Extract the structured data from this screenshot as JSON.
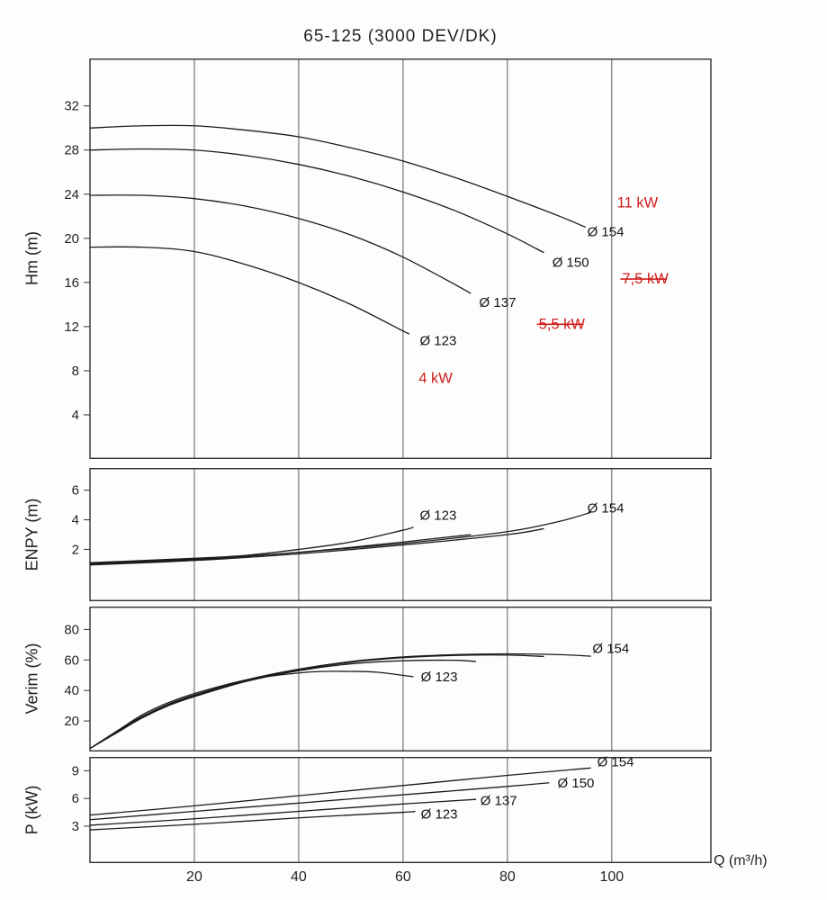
{
  "title": "65-125 (3000 DEV/DK)",
  "x_axis": {
    "label": "Q (m³/h)",
    "ticks": [
      20,
      40,
      60,
      80,
      100
    ],
    "range": [
      0,
      119
    ]
  },
  "colors": {
    "curve": "#1b1b1b",
    "grid": "#5b5b5b",
    "border": "#303030",
    "annotation_red": "#cf1d1d"
  },
  "chart_data": [
    {
      "id": "hm",
      "type": "line",
      "ylabel": "Hm (m)",
      "yticks": [
        4,
        8,
        12,
        16,
        20,
        24,
        28,
        32
      ],
      "ylim": [
        0,
        36.3
      ],
      "grid": "vertical-only",
      "series": [
        {
          "name": "Ø 154",
          "x": [
            0,
            10,
            20,
            30,
            40,
            50,
            60,
            70,
            80,
            90,
            95
          ],
          "y": [
            30,
            30.2,
            30.2,
            29.8,
            29.2,
            28.2,
            27,
            25.5,
            23.8,
            22,
            21
          ],
          "label": {
            "text": "Ø 154",
            "x": 95.3,
            "y": 20.2
          }
        },
        {
          "name": "Ø 150",
          "x": [
            0,
            10,
            20,
            30,
            40,
            50,
            60,
            70,
            80,
            87
          ],
          "y": [
            28,
            28.1,
            28,
            27.5,
            26.7,
            25.6,
            24.2,
            22.5,
            20.4,
            18.7
          ],
          "label": {
            "text": "Ø 150",
            "x": 88.6,
            "y": 17.4
          }
        },
        {
          "name": "Ø 137",
          "x": [
            0,
            10,
            20,
            30,
            40,
            50,
            60,
            70,
            73
          ],
          "y": [
            23.9,
            23.9,
            23.6,
            22.9,
            21.8,
            20.3,
            18.3,
            15.8,
            15
          ],
          "label": {
            "text": "Ø 137",
            "x": 74.6,
            "y": 13.8
          }
        },
        {
          "name": "Ø 123",
          "x": [
            0,
            10,
            20,
            30,
            40,
            50,
            60,
            61
          ],
          "y": [
            19.2,
            19.2,
            18.8,
            17.6,
            16,
            14,
            11.6,
            11.4
          ],
          "label": {
            "text": "Ø 123",
            "x": 63.2,
            "y": 10.3
          }
        }
      ],
      "annotations": [
        {
          "text": "11 kW",
          "x": 101,
          "y": 22.8,
          "color": "#cf1d1d",
          "strike": false
        },
        {
          "text": "7,5 kW",
          "x": 102,
          "y": 15.9,
          "color": "#cf1d1d",
          "strike": true
        },
        {
          "text": "5,5 kW",
          "x": 86,
          "y": 11.8,
          "color": "#cf1d1d",
          "strike": true
        },
        {
          "text": "4 kW",
          "x": 63,
          "y": 6.9,
          "color": "#cf1d1d",
          "strike": false
        }
      ]
    },
    {
      "id": "enpy",
      "type": "line",
      "ylabel": "ENPY (m)",
      "yticks": [
        2,
        4,
        6
      ],
      "ylim": [
        -1.5,
        7.5
      ],
      "grid": "vertical-only",
      "series": [
        {
          "name": "Ø 154",
          "x": [
            0,
            20,
            40,
            60,
            80,
            90,
            96
          ],
          "y": [
            1.0,
            1.3,
            1.8,
            2.4,
            3.2,
            3.9,
            4.5
          ],
          "label": {
            "text": "Ø 154",
            "x": 95.3,
            "y": 4.5
          }
        },
        {
          "name": "Ø 150",
          "x": [
            0,
            20,
            40,
            60,
            80,
            87
          ],
          "y": [
            0.95,
            1.25,
            1.7,
            2.3,
            3.0,
            3.4
          ]
        },
        {
          "name": "Ø 137",
          "x": [
            0,
            20,
            40,
            60,
            73
          ],
          "y": [
            1.05,
            1.35,
            1.8,
            2.5,
            3.0
          ]
        },
        {
          "name": "Ø 123",
          "x": [
            0,
            20,
            30,
            40,
            50,
            60,
            62
          ],
          "y": [
            1.1,
            1.4,
            1.6,
            2.0,
            2.5,
            3.3,
            3.5
          ],
          "label": {
            "text": "Ø 123",
            "x": 63.2,
            "y": 4.0
          }
        }
      ],
      "annotations": []
    },
    {
      "id": "verim",
      "type": "line",
      "ylabel": "Verim (%)",
      "yticks": [
        20,
        40,
        60,
        80
      ],
      "ylim": [
        0,
        95
      ],
      "grid": "vertical-only",
      "series": [
        {
          "name": "Ø 154",
          "x": [
            0,
            5,
            10,
            15,
            20,
            30,
            40,
            50,
            60,
            70,
            80,
            90,
            96
          ],
          "y": [
            2,
            13,
            23,
            31,
            37,
            47,
            54,
            59,
            62,
            63.5,
            64,
            63.5,
            62.5
          ],
          "label": {
            "text": "Ø 154",
            "x": 96.3,
            "y": 64.5
          }
        },
        {
          "name": "Ø 150",
          "x": [
            0,
            5,
            10,
            15,
            20,
            30,
            40,
            50,
            60,
            70,
            80,
            87
          ],
          "y": [
            2,
            12.5,
            22.5,
            30.5,
            36.5,
            46.5,
            53.5,
            58.5,
            61.5,
            63,
            63.2,
            62.3
          ]
        },
        {
          "name": "Ø 137",
          "x": [
            0,
            5,
            10,
            15,
            20,
            30,
            40,
            50,
            60,
            70,
            74
          ],
          "y": [
            2,
            12,
            22,
            30,
            36,
            46,
            53,
            57.5,
            59.5,
            59.8,
            59
          ]
        },
        {
          "name": "Ø 123",
          "x": [
            0,
            5,
            10,
            15,
            20,
            30,
            40,
            45,
            50,
            55,
            62
          ],
          "y": [
            2,
            13,
            24,
            32,
            38,
            47,
            51.5,
            52.5,
            52.5,
            52,
            49
          ],
          "label": {
            "text": "Ø 123",
            "x": 63.4,
            "y": 46
          }
        }
      ],
      "annotations": []
    },
    {
      "id": "p",
      "type": "line",
      "ylabel": "P (kW)",
      "yticks": [
        3,
        6,
        9
      ],
      "ylim": [
        -1,
        10.5
      ],
      "grid": "vertical-only",
      "series": [
        {
          "name": "Ø 154",
          "x": [
            0,
            20,
            40,
            60,
            80,
            96
          ],
          "y": [
            4.2,
            5.2,
            6.3,
            7.4,
            8.5,
            9.3
          ],
          "label": {
            "text": "Ø 154",
            "x": 97.2,
            "y": 9.5
          }
        },
        {
          "name": "Ø 150",
          "x": [
            0,
            20,
            40,
            60,
            80,
            88
          ],
          "y": [
            3.7,
            4.6,
            5.5,
            6.4,
            7.3,
            7.7
          ],
          "label": {
            "text": "Ø 150",
            "x": 89.6,
            "y": 7.2
          }
        },
        {
          "name": "Ø 137",
          "x": [
            0,
            20,
            40,
            60,
            74
          ],
          "y": [
            3.1,
            3.8,
            4.6,
            5.4,
            5.9
          ],
          "label": {
            "text": "Ø 137",
            "x": 74.8,
            "y": 5.3
          }
        },
        {
          "name": "Ø 123",
          "x": [
            0,
            20,
            40,
            60,
            62
          ],
          "y": [
            2.6,
            3.2,
            3.9,
            4.5,
            4.6
          ],
          "label": {
            "text": "Ø 123",
            "x": 63.4,
            "y": 3.8
          }
        }
      ],
      "annotations": []
    }
  ]
}
